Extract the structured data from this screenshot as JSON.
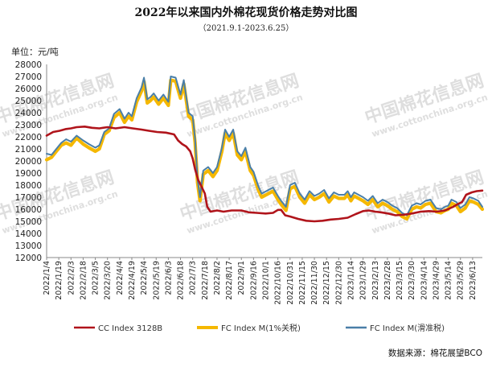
{
  "chart_data": {
    "type": "line",
    "title": "2022年以来国内外棉花现货价格走势对比图",
    "subtitle": "（2021.9.1-2023.6.25）",
    "unit_label": "单位：元/吨",
    "ylim": [
      12000,
      28000
    ],
    "yticks": [
      12000,
      13000,
      14000,
      15000,
      16000,
      17000,
      18000,
      19000,
      20000,
      21000,
      22000,
      23000,
      24000,
      25000,
      26000,
      27000,
      28000
    ],
    "grid": false,
    "legend_position": "bottom",
    "source": "数据来源：棉花展望BCO",
    "x_labels": [
      "2022/1/4",
      "2022/1/19",
      "2022/2/3",
      "2022/2/18",
      "2022/3/5",
      "2022/3/20",
      "2022/4/4",
      "2022/4/19",
      "2022/5/4",
      "2022/5/19",
      "2022/6/3",
      "2022/6/18",
      "2022/7/3",
      "2022/7/18",
      "2022/8/2",
      "2022/8/17",
      "2022/9/1",
      "2022/9/16",
      "2022/10/1",
      "2022/10/16",
      "2022/10/31",
      "2022/11/15",
      "2022/11/30",
      "2022/12/15",
      "2022/12/30",
      "2023/1/14",
      "2023/1/29",
      "2023/2/13",
      "2023/2/28",
      "2023/3/15",
      "2023/3/30",
      "2023/4/14",
      "2023/4/29",
      "2023/5/14",
      "2023/5/29",
      "2023/6/13"
    ],
    "x_range": [
      "2022/1/4",
      "2023/6/25"
    ],
    "series": [
      {
        "name": "CC Index 3128B",
        "color": "#b0141b",
        "points": [
          [
            "2022/1/4",
            22100
          ],
          [
            "2022/1/12",
            22400
          ],
          [
            "2022/1/20",
            22500
          ],
          [
            "2022/1/28",
            22650
          ],
          [
            "2022/2/3",
            22700
          ],
          [
            "2022/2/10",
            22800
          ],
          [
            "2022/2/20",
            22850
          ],
          [
            "2022/3/1",
            22750
          ],
          [
            "2022/3/10",
            22700
          ],
          [
            "2022/3/20",
            22800
          ],
          [
            "2022/3/30",
            22700
          ],
          [
            "2022/4/10",
            22800
          ],
          [
            "2022/4/20",
            22700
          ],
          [
            "2022/5/1",
            22600
          ],
          [
            "2022/5/10",
            22500
          ],
          [
            "2022/5/20",
            22400
          ],
          [
            "2022/5/31",
            22350
          ],
          [
            "2022/6/10",
            22200
          ],
          [
            "2022/6/15",
            21700
          ],
          [
            "2022/6/20",
            21400
          ],
          [
            "2022/6/25",
            21200
          ],
          [
            "2022/6/30",
            20800
          ],
          [
            "2022/7/3",
            20200
          ],
          [
            "2022/7/6",
            19300
          ],
          [
            "2022/7/10",
            18400
          ],
          [
            "2022/7/13",
            18000
          ],
          [
            "2022/7/18",
            17300
          ],
          [
            "2022/7/21",
            16200
          ],
          [
            "2022/7/25",
            15800
          ],
          [
            "2022/8/2",
            15900
          ],
          [
            "2022/8/10",
            15800
          ],
          [
            "2022/8/20",
            15900
          ],
          [
            "2022/9/1",
            15900
          ],
          [
            "2022/9/10",
            15750
          ],
          [
            "2022/9/20",
            15700
          ],
          [
            "2022/10/1",
            15650
          ],
          [
            "2022/10/10",
            15700
          ],
          [
            "2022/10/16",
            15950
          ],
          [
            "2022/10/20",
            15950
          ],
          [
            "2022/10/25",
            15500
          ],
          [
            "2022/10/31",
            15400
          ],
          [
            "2022/11/10",
            15200
          ],
          [
            "2022/11/20",
            15050
          ],
          [
            "2022/11/30",
            15000
          ],
          [
            "2022/12/10",
            15050
          ],
          [
            "2022/12/20",
            15150
          ],
          [
            "2022/12/30",
            15200
          ],
          [
            "2023/1/10",
            15300
          ],
          [
            "2023/1/20",
            15600
          ],
          [
            "2023/1/29",
            15850
          ],
          [
            "2023/2/5",
            15900
          ],
          [
            "2023/2/13",
            15800
          ],
          [
            "2023/2/20",
            15750
          ],
          [
            "2023/3/1",
            15650
          ],
          [
            "2023/3/10",
            15500
          ],
          [
            "2023/3/20",
            15550
          ],
          [
            "2023/3/30",
            15650
          ],
          [
            "2023/4/10",
            15800
          ],
          [
            "2023/4/20",
            15850
          ],
          [
            "2023/4/30",
            15800
          ],
          [
            "2023/5/10",
            15900
          ],
          [
            "2023/5/20",
            16200
          ],
          [
            "2023/5/25",
            16400
          ],
          [
            "2023/5/31",
            16600
          ],
          [
            "2023/6/5",
            17200
          ],
          [
            "2023/6/12",
            17400
          ],
          [
            "2023/6/18",
            17500
          ],
          [
            "2023/6/25",
            17550
          ]
        ]
      },
      {
        "name": "FC Index M(1%关税)",
        "color": "#f5b800",
        "points": [
          [
            "2022/1/4",
            20100
          ],
          [
            "2022/1/10",
            20300
          ],
          [
            "2022/1/16",
            20800
          ],
          [
            "2022/1/22",
            21300
          ],
          [
            "2022/1/28",
            21500
          ],
          [
            "2022/2/3",
            21300
          ],
          [
            "2022/2/10",
            21900
          ],
          [
            "2022/2/18",
            21400
          ],
          [
            "2022/2/25",
            21100
          ],
          [
            "2022/3/5",
            20800
          ],
          [
            "2022/3/10",
            21000
          ],
          [
            "2022/3/16",
            22200
          ],
          [
            "2022/3/22",
            22500
          ],
          [
            "2022/3/28",
            23600
          ],
          [
            "2022/4/4",
            24000
          ],
          [
            "2022/4/10",
            23200
          ],
          [
            "2022/4/15",
            23700
          ],
          [
            "2022/4/19",
            23400
          ],
          [
            "2022/4/25",
            24900
          ],
          [
            "2022/5/1",
            25800
          ],
          [
            "2022/5/4",
            26600
          ],
          [
            "2022/5/8",
            24800
          ],
          [
            "2022/5/12",
            25000
          ],
          [
            "2022/5/16",
            25300
          ],
          [
            "2022/5/22",
            24700
          ],
          [
            "2022/5/28",
            25200
          ],
          [
            "2022/6/3",
            24600
          ],
          [
            "2022/6/6",
            26700
          ],
          [
            "2022/6/12",
            26600
          ],
          [
            "2022/6/18",
            25200
          ],
          [
            "2022/6/22",
            26400
          ],
          [
            "2022/6/28",
            23700
          ],
          [
            "2022/7/3",
            23400
          ],
          [
            "2022/7/6",
            21500
          ],
          [
            "2022/7/9",
            18200
          ],
          [
            "2022/7/12",
            16700
          ],
          [
            "2022/7/16",
            18900
          ],
          [
            "2022/7/22",
            19200
          ],
          [
            "2022/7/28",
            18700
          ],
          [
            "2022/8/2",
            19200
          ],
          [
            "2022/8/8",
            20800
          ],
          [
            "2022/8/12",
            22300
          ],
          [
            "2022/8/17",
            21700
          ],
          [
            "2022/8/22",
            22300
          ],
          [
            "2022/8/27",
            20500
          ],
          [
            "2022/9/1",
            20100
          ],
          [
            "2022/9/6",
            20800
          ],
          [
            "2022/9/12",
            19200
          ],
          [
            "2022/9/16",
            18800
          ],
          [
            "2022/9/22",
            17600
          ],
          [
            "2022/9/26",
            17000
          ],
          [
            "2022/10/10",
            17500
          ],
          [
            "2022/10/16",
            16800
          ],
          [
            "2022/10/20",
            16400
          ],
          [
            "2022/10/26",
            15900
          ],
          [
            "2022/10/31",
            17700
          ],
          [
            "2022/11/6",
            17900
          ],
          [
            "2022/11/12",
            17000
          ],
          [
            "2022/11/18",
            16500
          ],
          [
            "2022/11/24",
            17200
          ],
          [
            "2022/11/30",
            16800
          ],
          [
            "2022/12/6",
            17000
          ],
          [
            "2022/12/12",
            17300
          ],
          [
            "2022/12/18",
            16600
          ],
          [
            "2022/12/24",
            17100
          ],
          [
            "2022/12/30",
            16900
          ],
          [
            "2023/1/6",
            16900
          ],
          [
            "2023/1/10",
            17200
          ],
          [
            "2023/1/14",
            16700
          ],
          [
            "2023/1/18",
            17100
          ],
          [
            "2023/1/29",
            16700
          ],
          [
            "2023/2/4",
            16400
          ],
          [
            "2023/2/10",
            16800
          ],
          [
            "2023/2/16",
            16200
          ],
          [
            "2023/2/22",
            16500
          ],
          [
            "2023/2/28",
            16300
          ],
          [
            "2023/3/6",
            16000
          ],
          [
            "2023/3/12",
            15800
          ],
          [
            "2023/3/18",
            15400
          ],
          [
            "2023/3/24",
            15200
          ],
          [
            "2023/3/30",
            16000
          ],
          [
            "2023/4/5",
            16200
          ],
          [
            "2023/4/10",
            16100
          ],
          [
            "2023/4/16",
            16400
          ],
          [
            "2023/4/22",
            16500
          ],
          [
            "2023/4/29",
            15800
          ],
          [
            "2023/5/5",
            15700
          ],
          [
            "2023/5/10",
            15900
          ],
          [
            "2023/5/14",
            16000
          ],
          [
            "2023/5/18",
            16500
          ],
          [
            "2023/5/24",
            16300
          ],
          [
            "2023/5/29",
            15800
          ],
          [
            "2023/6/4",
            16100
          ],
          [
            "2023/6/9",
            16700
          ],
          [
            "2023/6/14",
            16600
          ],
          [
            "2023/6/20",
            16400
          ],
          [
            "2023/6/25",
            16000
          ]
        ]
      },
      {
        "name": "FC Index M(滑准税)",
        "color": "#4a7fa8",
        "points": [
          [
            "2022/1/4",
            20600
          ],
          [
            "2022/1/10",
            20500
          ],
          [
            "2022/1/16",
            21000
          ],
          [
            "2022/1/22",
            21500
          ],
          [
            "2022/1/28",
            21800
          ],
          [
            "2022/2/3",
            21600
          ],
          [
            "2022/2/10",
            22100
          ],
          [
            "2022/2/18",
            21700
          ],
          [
            "2022/2/25",
            21400
          ],
          [
            "2022/3/5",
            21100
          ],
          [
            "2022/3/10",
            21300
          ],
          [
            "2022/3/16",
            22400
          ],
          [
            "2022/3/22",
            22700
          ],
          [
            "2022/3/28",
            23900
          ],
          [
            "2022/4/4",
            24300
          ],
          [
            "2022/4/10",
            23500
          ],
          [
            "2022/4/15",
            24000
          ],
          [
            "2022/4/19",
            23700
          ],
          [
            "2022/4/25",
            25200
          ],
          [
            "2022/5/1",
            26100
          ],
          [
            "2022/5/4",
            26900
          ],
          [
            "2022/5/8",
            25100
          ],
          [
            "2022/5/12",
            25300
          ],
          [
            "2022/5/16",
            25600
          ],
          [
            "2022/5/22",
            25000
          ],
          [
            "2022/5/28",
            25500
          ],
          [
            "2022/6/3",
            24900
          ],
          [
            "2022/6/6",
            27000
          ],
          [
            "2022/6/12",
            26900
          ],
          [
            "2022/6/18",
            25500
          ],
          [
            "2022/6/22",
            26700
          ],
          [
            "2022/6/28",
            24000
          ],
          [
            "2022/7/3",
            23700
          ],
          [
            "2022/7/6",
            21800
          ],
          [
            "2022/7/9",
            18500
          ],
          [
            "2022/7/12",
            17000
          ],
          [
            "2022/7/16",
            19200
          ],
          [
            "2022/7/22",
            19500
          ],
          [
            "2022/7/28",
            19000
          ],
          [
            "2022/8/2",
            19500
          ],
          [
            "2022/8/8",
            21100
          ],
          [
            "2022/8/12",
            22600
          ],
          [
            "2022/8/17",
            22000
          ],
          [
            "2022/8/22",
            22600
          ],
          [
            "2022/8/27",
            20800
          ],
          [
            "2022/9/1",
            20400
          ],
          [
            "2022/9/6",
            21100
          ],
          [
            "2022/9/12",
            19500
          ],
          [
            "2022/9/16",
            19100
          ],
          [
            "2022/9/22",
            17900
          ],
          [
            "2022/9/26",
            17300
          ],
          [
            "2022/10/10",
            17800
          ],
          [
            "2022/10/16",
            17100
          ],
          [
            "2022/10/20",
            16700
          ],
          [
            "2022/10/26",
            16200
          ],
          [
            "2022/10/31",
            18000
          ],
          [
            "2022/11/6",
            18200
          ],
          [
            "2022/11/12",
            17300
          ],
          [
            "2022/11/18",
            16800
          ],
          [
            "2022/11/24",
            17500
          ],
          [
            "2022/11/30",
            17100
          ],
          [
            "2022/12/6",
            17300
          ],
          [
            "2022/12/12",
            17600
          ],
          [
            "2022/12/18",
            16900
          ],
          [
            "2022/12/24",
            17400
          ],
          [
            "2022/12/30",
            17200
          ],
          [
            "2023/1/6",
            17200
          ],
          [
            "2023/1/10",
            17500
          ],
          [
            "2023/1/14",
            17000
          ],
          [
            "2023/1/18",
            17400
          ],
          [
            "2023/1/29",
            17000
          ],
          [
            "2023/2/4",
            16700
          ],
          [
            "2023/2/10",
            17100
          ],
          [
            "2023/2/16",
            16500
          ],
          [
            "2023/2/22",
            16800
          ],
          [
            "2023/2/28",
            16600
          ],
          [
            "2023/3/6",
            16300
          ],
          [
            "2023/3/12",
            16100
          ],
          [
            "2023/3/18",
            15700
          ],
          [
            "2023/3/24",
            15500
          ],
          [
            "2023/3/30",
            16300
          ],
          [
            "2023/4/5",
            16500
          ],
          [
            "2023/4/10",
            16400
          ],
          [
            "2023/4/16",
            16700
          ],
          [
            "2023/4/22",
            16800
          ],
          [
            "2023/4/29",
            16100
          ],
          [
            "2023/5/5",
            16000
          ],
          [
            "2023/5/10",
            16200
          ],
          [
            "2023/5/14",
            16300
          ],
          [
            "2023/5/18",
            16800
          ],
          [
            "2023/5/24",
            16600
          ],
          [
            "2023/5/29",
            16100
          ],
          [
            "2023/6/4",
            16400
          ],
          [
            "2023/6/9",
            17000
          ],
          [
            "2023/6/14",
            16900
          ],
          [
            "2023/6/20",
            16700
          ],
          [
            "2023/6/25",
            16200
          ]
        ]
      }
    ]
  },
  "watermark": {
    "cn_text": "中国棉花信息网",
    "en_text": "www.cottonchina.org.cn"
  }
}
